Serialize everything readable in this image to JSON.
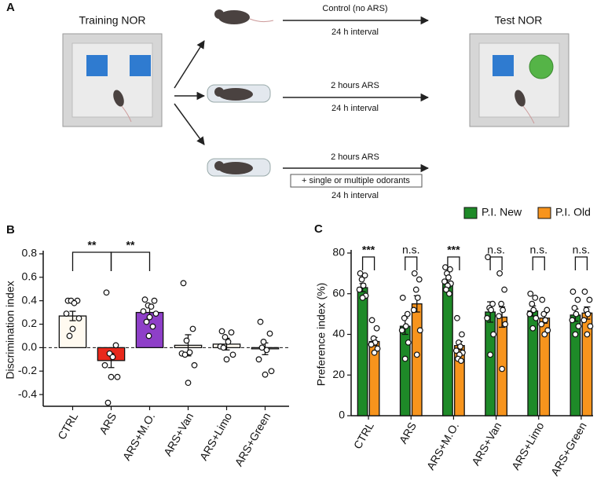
{
  "diagram": {
    "panel_label": "A",
    "training": "Training NOR",
    "test": "Test NOR",
    "arms": [
      {
        "condition": "Control (no ARS)",
        "interval": "24 h interval"
      },
      {
        "condition": "2 hours ARS",
        "interval": "24 h interval"
      },
      {
        "condition": "2 hours ARS",
        "odorants": "+ single or multiple odorants",
        "interval": "24 h interval"
      }
    ]
  },
  "chart_data": [
    {
      "type": "bar",
      "panel_label": "B",
      "ylabel": "Discrimination index",
      "categories": [
        "CTRL",
        "ARS",
        "ARS+M.O.",
        "ARS+Van",
        "ARS+Limo",
        "ARS+Green"
      ],
      "values": [
        0.27,
        -0.11,
        0.3,
        0.02,
        0.03,
        -0.01
      ],
      "errors": [
        0.04,
        0.06,
        0.04,
        0.09,
        0.05,
        0.05
      ],
      "colors": [
        "#fffaf0",
        "#e8291c",
        "#8e3fc8",
        "#fffaf0",
        "#fffaf0",
        "#fffaf0"
      ],
      "points": [
        [
          0.4,
          0.4,
          0.4,
          0.38,
          0.29,
          0.25,
          0.16,
          0.1
        ],
        [
          0.47,
          0.02,
          -0.05,
          -0.08,
          -0.15,
          -0.25,
          -0.25,
          -0.47
        ],
        [
          0.41,
          0.4,
          0.36,
          0.35,
          0.31,
          0.29,
          0.26,
          0.22,
          0.18,
          0.1
        ],
        [
          0.55,
          0.16,
          0.06,
          -0.04,
          -0.05,
          -0.15,
          -0.3,
          -0.06
        ],
        [
          0.14,
          0.13,
          0.09,
          0.05,
          0.01,
          -0.06,
          -0.1,
          0.0
        ],
        [
          0.22,
          0.12,
          0.05,
          -0.02,
          -0.1,
          -0.2,
          -0.23,
          0.0
        ]
      ],
      "ylim": [
        -0.5,
        0.8
      ],
      "yticks": [
        -0.4,
        -0.2,
        {
          "value": 0,
          "label": "0.0"
        },
        0.2,
        0.4,
        0.6,
        0.8
      ],
      "significance": [
        {
          "label": "**",
          "pair": [
            "CTRL",
            "ARS"
          ]
        },
        {
          "label": "**",
          "pair": [
            "ARS",
            "ARS+M.O."
          ]
        }
      ]
    },
    {
      "type": "grouped_bar",
      "panel_label": "C",
      "ylabel": "Preference index (%)",
      "categories": [
        "CTRL",
        "ARS",
        "ARS+M.O.",
        "ARS+Van",
        "ARS+Limo",
        "ARS+Green"
      ],
      "series": [
        {
          "name": "P.I. New",
          "color": "#1e8a28",
          "values": [
            63,
            44,
            65,
            51,
            51.5,
            49.5
          ],
          "errors": [
            2,
            4,
            2,
            5,
            2.5,
            3
          ],
          "points": [
            [
              70,
              69,
              67,
              64,
              62,
              59,
              58
            ],
            [
              58,
              50,
              48,
              44,
              42,
              36,
              28
            ],
            [
              73,
              72,
              70,
              68,
              66,
              65,
              64,
              62,
              60
            ],
            [
              78,
              55,
              53,
              52,
              48,
              40,
              30
            ],
            [
              60,
              58,
              55,
              52,
              50,
              48,
              43
            ],
            [
              61,
              57,
              53,
              50,
              47,
              44,
              40
            ]
          ]
        },
        {
          "name": "P.I. Old",
          "color": "#f7941d",
          "values": [
            36.5,
            55,
            34.5,
            48.5,
            48,
            50.5
          ],
          "errors": [
            2,
            4,
            2,
            5,
            2.5,
            3
          ],
          "points": [
            [
              47,
              43,
              38,
              36,
              35,
              33,
              31
            ],
            [
              70,
              67,
              62,
              58,
              52,
              42,
              30
            ],
            [
              48,
              40,
              36,
              34,
              32,
              31,
              30,
              28,
              27
            ],
            [
              70,
              62,
              55,
              52,
              49,
              45,
              23
            ],
            [
              57,
              52,
              50,
              47,
              45,
              42,
              40
            ],
            [
              61,
              57,
              52,
              50,
              47,
              44,
              40
            ]
          ]
        }
      ],
      "ylim": [
        0,
        80
      ],
      "yticks": [
        0,
        20,
        40,
        60,
        80
      ],
      "legend": "top-right",
      "significance": [
        {
          "label": "***",
          "category": "CTRL"
        },
        {
          "label": "n.s.",
          "category": "ARS"
        },
        {
          "label": "***",
          "category": "ARS+M.O."
        },
        {
          "label": "n.s.",
          "category": "ARS+Van"
        },
        {
          "label": "n.s.",
          "category": "ARS+Limo"
        },
        {
          "label": "n.s.",
          "category": "ARS+Green"
        }
      ]
    }
  ]
}
